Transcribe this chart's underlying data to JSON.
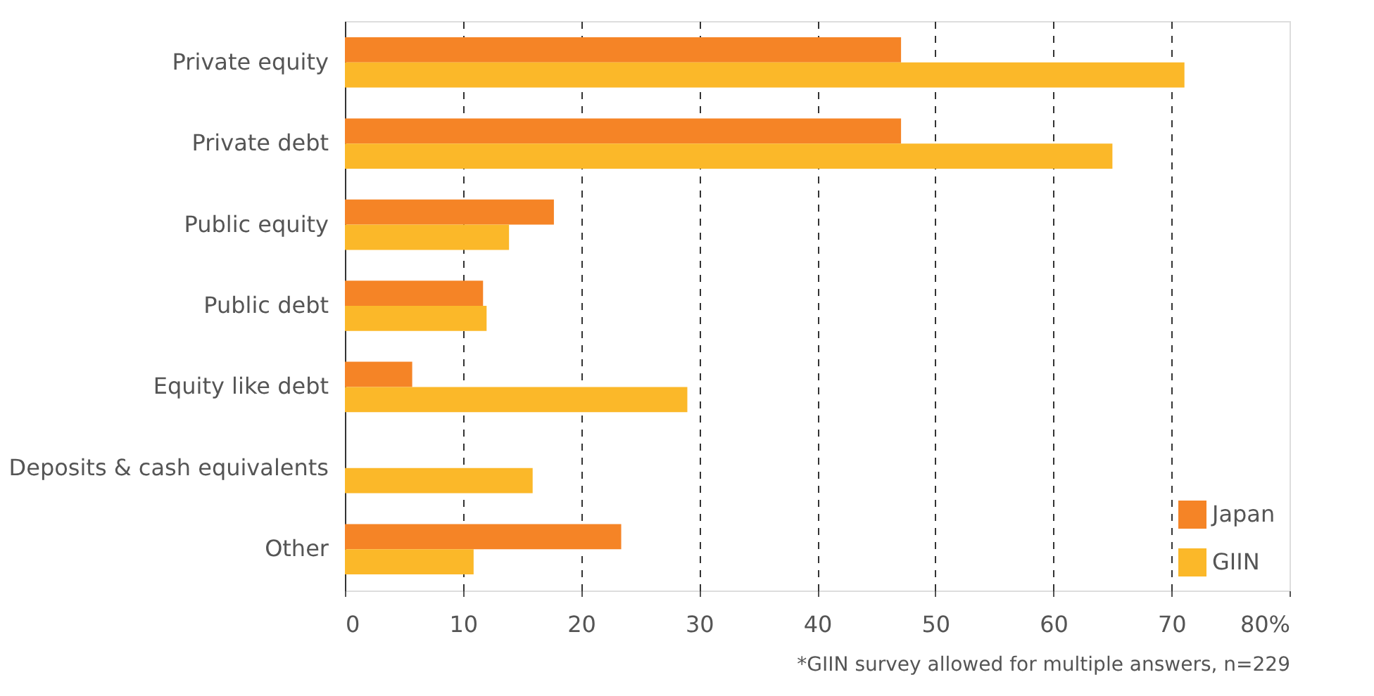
{
  "chart_data": {
    "type": "bar",
    "orientation": "horizontal",
    "categories": [
      "Private equity",
      "Private debt",
      "Public equity",
      "Public debt",
      "Equity like debt",
      "Deposits & cash equivalents",
      "Other"
    ],
    "series": [
      {
        "name": "Japan",
        "color": "#f58426",
        "values": [
          47.1,
          47.1,
          17.7,
          11.7,
          5.7,
          null,
          23.4
        ]
      },
      {
        "name": "GIIN",
        "color": "#fbb829",
        "values": [
          71.1,
          65.0,
          13.9,
          12.0,
          29.0,
          15.9,
          10.9
        ]
      }
    ],
    "xlim": [
      0,
      80
    ],
    "xticks": [
      0,
      10,
      20,
      30,
      40,
      50,
      60,
      70,
      {
        "value": 80,
        "label": "80%"
      }
    ],
    "grid": "x",
    "legend": "bottom right",
    "annotations": [
      "*GIIN survey allowed for multiple answers, n=229"
    ]
  }
}
